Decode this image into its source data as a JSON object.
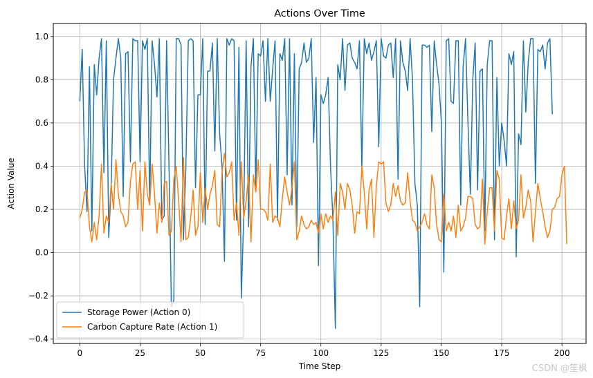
{
  "chart_data": {
    "type": "line",
    "title": "Actions Over Time",
    "xlabel": "Time Step",
    "ylabel": "Action Value",
    "xlim": [
      -11,
      210
    ],
    "ylim": [
      -0.42,
      1.06
    ],
    "xticks": [
      0,
      25,
      50,
      75,
      100,
      125,
      150,
      175,
      200
    ],
    "yticks": [
      -0.4,
      -0.2,
      0.0,
      0.2,
      0.4,
      0.6,
      0.8,
      1.0
    ],
    "xtick_labels": [
      "0",
      "25",
      "50",
      "75",
      "100",
      "125",
      "150",
      "175",
      "200"
    ],
    "ytick_labels": [
      "−0.4",
      "−0.2",
      "0.0",
      "0.2",
      "0.4",
      "0.6",
      "0.8",
      "1.0"
    ],
    "grid": true,
    "legend_position": "bottom-left",
    "series": [
      {
        "name": "Storage Power (Action 0)",
        "color": "#1f77b4",
        "values": [
          0.7,
          0.94,
          0.4,
          0.19,
          0.86,
          0.1,
          0.87,
          0.73,
          0.9,
          0.99,
          0.37,
          0.98,
          0.07,
          0.3,
          0.8,
          0.9,
          0.99,
          0.9,
          0.26,
          0.92,
          0.93,
          0.42,
          0.99,
          0.98,
          0.98,
          0.42,
          0.98,
          0.94,
          0.99,
          0.22,
          0.98,
          0.87,
          0.72,
          0.99,
          0.15,
          0.17,
          0.98,
          0.4,
          -0.25,
          -0.22,
          0.99,
          0.99,
          0.96,
          0.06,
          0.4,
          0.98,
          0.99,
          0.98,
          0.3,
          0.73,
          0.73,
          0.99,
          0.13,
          0.84,
          0.84,
          0.97,
          0.47,
          0.99,
          0.55,
          0.4,
          -0.04,
          0.99,
          0.96,
          0.99,
          0.98,
          0.15,
          0.95,
          -0.21,
          0.17,
          0.98,
          0.12,
          0.86,
          0.99,
          0.29,
          0.92,
          0.91,
          0.98,
          0.7,
          0.99,
          0.7,
          0.85,
          0.98,
          0.15,
          0.92,
          0.89,
          0.99,
          0.36,
          0.99,
          0.22,
          0.92,
          0.12,
          0.85,
          0.88,
          0.97,
          0.88,
          0.9,
          0.99,
          0.51,
          0.81,
          -0.06,
          0.73,
          0.69,
          0.73,
          0.81,
          0.4,
          0.15,
          -0.35,
          0.87,
          0.8,
          0.99,
          0.75,
          0.96,
          0.97,
          0.9,
          0.88,
          0.85,
          0.98,
          0.39,
          0.99,
          0.92,
          0.97,
          0.89,
          0.93,
          0.98,
          0.49,
          0.99,
          0.91,
          0.9,
          0.96,
          0.97,
          0.81,
          0.99,
          0.34,
          0.98,
          0.88,
          0.84,
          0.75,
          0.99,
          0.8,
          0.32,
          0.22,
          -0.25,
          0.96,
          0.96,
          0.95,
          0.96,
          0.56,
          0.98,
          0.87,
          0.78,
          0.6,
          -0.09,
          0.98,
          0.99,
          0.7,
          0.69,
          0.98,
          0.98,
          0.22,
          0.86,
          0.99,
          0.6,
          0.27,
          0.8,
          0.97,
          0.29,
          0.84,
          0.85,
          0.1,
          0.87,
          0.98,
          0.98,
          0.06,
          0.81,
          0.4,
          0.6,
          0.52,
          0.4,
          0.92,
          0.87,
          0.93,
          -0.02,
          0.55,
          0.5,
          0.98,
          0.65,
          0.88,
          0.99,
          0.99,
          0.32,
          0.94,
          0.93,
          0.96,
          0.85,
          0.97,
          0.99,
          0.64
        ]
      },
      {
        "name": "Carbon Capture Rate (Action 1)",
        "color": "#ff7f0e",
        "values": [
          0.16,
          0.2,
          0.28,
          0.29,
          0.12,
          0.05,
          0.14,
          0.06,
          0.17,
          0.41,
          0.09,
          0.17,
          0.14,
          0.32,
          0.2,
          0.43,
          0.27,
          0.19,
          0.17,
          0.12,
          0.14,
          0.33,
          0.41,
          0.42,
          0.2,
          0.38,
          0.1,
          0.42,
          0.27,
          0.22,
          0.41,
          0.27,
          0.09,
          0.23,
          0.14,
          0.32,
          0.33,
          0.08,
          0.1,
          0.34,
          0.4,
          0.24,
          0.05,
          0.44,
          0.06,
          0.07,
          0.16,
          0.29,
          0.08,
          0.12,
          0.37,
          0.14,
          0.3,
          0.2,
          0.27,
          0.31,
          0.38,
          0.13,
          0.12,
          0.37,
          0.46,
          0.35,
          0.37,
          0.42,
          0.15,
          0.23,
          0.08,
          0.42,
          0.16,
          0.24,
          0.36,
          0.05,
          0.36,
          0.28,
          0.43,
          0.2,
          0.2,
          0.19,
          0.15,
          0.41,
          0.14,
          0.17,
          0.16,
          0.12,
          0.25,
          0.35,
          0.28,
          0.22,
          0.3,
          0.42,
          0.06,
          0.1,
          0.17,
          0.13,
          0.11,
          0.12,
          0.15,
          0.13,
          0.14,
          0.09,
          0.18,
          0.11,
          0.18,
          0.14,
          0.17,
          0.15,
          0.28,
          0.08,
          0.32,
          0.28,
          0.2,
          0.32,
          0.29,
          0.22,
          0.09,
          0.19,
          0.18,
          0.4,
          0.28,
          0.11,
          0.29,
          0.34,
          0.07,
          0.31,
          0.42,
          0.41,
          0.42,
          0.23,
          0.19,
          0.22,
          0.32,
          0.26,
          0.31,
          0.24,
          0.22,
          0.23,
          0.37,
          0.24,
          0.15,
          0.14,
          0.1,
          0.12,
          0.14,
          0.18,
          0.13,
          0.11,
          0.36,
          0.3,
          0.13,
          0.06,
          0.05,
          0.27,
          0.1,
          0.14,
          0.1,
          0.17,
          0.07,
          0.22,
          0.1,
          0.12,
          0.16,
          0.26,
          0.26,
          0.25,
          0.13,
          0.11,
          0.12,
          0.34,
          0.04,
          0.19,
          0.3,
          0.3,
          0.1,
          0.38,
          0.34,
          0.07,
          0.06,
          0.17,
          0.25,
          0.11,
          0.24,
          0.11,
          0.15,
          0.36,
          0.16,
          0.21,
          0.29,
          0.24,
          0.05,
          0.19,
          0.32,
          0.25,
          0.19,
          0.12,
          0.07,
          0.1,
          0.2,
          0.21,
          0.25,
          0.26,
          0.36,
          0.4,
          0.04
        ]
      }
    ],
    "watermark": "CSDN @笙枫"
  }
}
